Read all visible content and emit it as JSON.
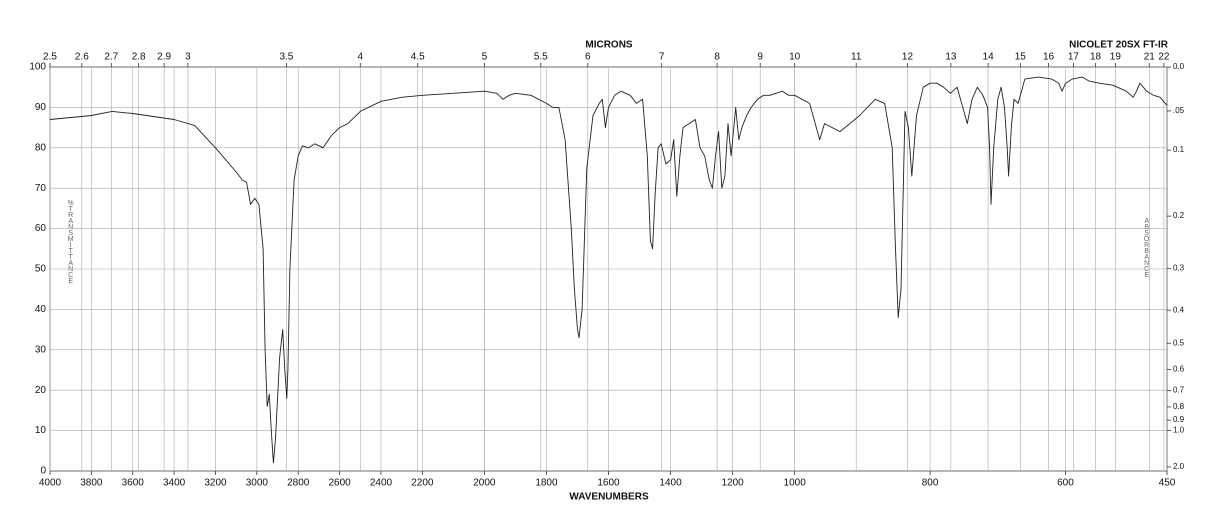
{
  "chart_data": {
    "type": "line",
    "title": "NICOLET 20SX FT-IR",
    "x_label": "WAVENUMBERS",
    "x2_label": "MICRONS",
    "y_label": "%TRANSMITTANCE",
    "y2_label": "ABSORBANCE",
    "xlim": [
      4000,
      450
    ],
    "x_scale_breaks": [
      2200,
      1000
    ],
    "xticks": [
      4000,
      3800,
      3600,
      3400,
      3200,
      3000,
      2800,
      2600,
      2400,
      2200,
      2000,
      1800,
      1600,
      1400,
      1200,
      1000,
      800,
      600,
      450
    ],
    "x2ticks": [
      2.5,
      2.6,
      2.7,
      2.8,
      2.9,
      3,
      3.5,
      4,
      4.5,
      5,
      5.5,
      6,
      7,
      8,
      9,
      10,
      11,
      12,
      13,
      14,
      15,
      16,
      17,
      18,
      19,
      21,
      22
    ],
    "ylim": [
      0,
      100
    ],
    "yticks": [
      0,
      10,
      20,
      30,
      40,
      50,
      60,
      70,
      80,
      90,
      100
    ],
    "y2ticks": [
      {
        "value": 0,
        "label": "0.0"
      },
      {
        "value": 0.05,
        "label": ".05"
      },
      0.1,
      0.2,
      0.3,
      0.4,
      0.5,
      0.6,
      0.7,
      0.8,
      0.9,
      {
        "value": 1,
        "label": "1.0"
      },
      {
        "value": 2,
        "label": "2.0"
      }
    ],
    "grid": true,
    "series": [
      {
        "color": "#222222",
        "x": [
          4000,
          3800,
          3700,
          3600,
          3400,
          3300,
          3200,
          3100,
          3070,
          3050,
          3030,
          3010,
          2990,
          2970,
          2960,
          2950,
          2940,
          2930,
          2920,
          2910,
          2890,
          2875,
          2865,
          2855,
          2850,
          2840,
          2820,
          2800,
          2780,
          2750,
          2720,
          2680,
          2640,
          2600,
          2560,
          2500,
          2400,
          2300,
          2200,
          2100,
          2000,
          1960,
          1940,
          1920,
          1900,
          1850,
          1800,
          1780,
          1760,
          1740,
          1720,
          1710,
          1700,
          1695,
          1685,
          1670,
          1650,
          1630,
          1620,
          1610,
          1600,
          1580,
          1560,
          1530,
          1510,
          1490,
          1475,
          1465,
          1458,
          1450,
          1440,
          1430,
          1415,
          1400,
          1390,
          1380,
          1370,
          1360,
          1340,
          1320,
          1305,
          1290,
          1275,
          1265,
          1255,
          1245,
          1235,
          1225,
          1215,
          1205,
          1190,
          1180,
          1170,
          1155,
          1140,
          1120,
          1100,
          1080,
          1060,
          1040,
          1020,
          1000,
          978,
          963,
          956,
          933,
          904,
          881,
          867,
          856,
          851,
          847,
          843,
          837,
          832,
          827,
          820,
          810,
          800,
          790,
          780,
          770,
          760,
          755,
          745,
          738,
          730,
          722,
          715,
          712,
          710,
          706,
          700,
          695,
          690,
          686,
          684,
          680,
          676,
          670,
          665,
          660,
          640,
          620,
          610,
          605,
          600,
          590,
          575,
          565,
          550,
          530,
          510,
          500,
          495,
          490,
          480,
          470,
          460,
          450
        ],
        "values": [
          87,
          88,
          89,
          88.5,
          87,
          85.5,
          80,
          74,
          72,
          71.5,
          66,
          67.5,
          66,
          55,
          30,
          16,
          19,
          10,
          2,
          8,
          28,
          35,
          25,
          18,
          25,
          50,
          72,
          78,
          80.5,
          80,
          81,
          80,
          83,
          85,
          86,
          89,
          91.5,
          92.5,
          93,
          93.5,
          94,
          93.5,
          92,
          93,
          93.5,
          93,
          91,
          90,
          90,
          82,
          60,
          45,
          35,
          33,
          40,
          75,
          88,
          91,
          92,
          85,
          90,
          93,
          94,
          93,
          91,
          92,
          78,
          57,
          55,
          68,
          80,
          81,
          76,
          77,
          82,
          68,
          78,
          85,
          86,
          87,
          80,
          78,
          72,
          70,
          78,
          84,
          70,
          73,
          86,
          78,
          90,
          82,
          85,
          88,
          90,
          92,
          93,
          93,
          93.5,
          94,
          93,
          93,
          91,
          82,
          86,
          84,
          88,
          92,
          91,
          80,
          55,
          38,
          45,
          89,
          85,
          73,
          88,
          95,
          96,
          96,
          95,
          93.5,
          95,
          92,
          86,
          92,
          95,
          93,
          90,
          80,
          66,
          80,
          92,
          95,
          90,
          80,
          73,
          85,
          92,
          91,
          94,
          97,
          97.5,
          97,
          96,
          94,
          96,
          97,
          97.5,
          96.5,
          96,
          95.5,
          94,
          92.5,
          94,
          96,
          94,
          93,
          92.5,
          90.5
        ]
      }
    ]
  }
}
